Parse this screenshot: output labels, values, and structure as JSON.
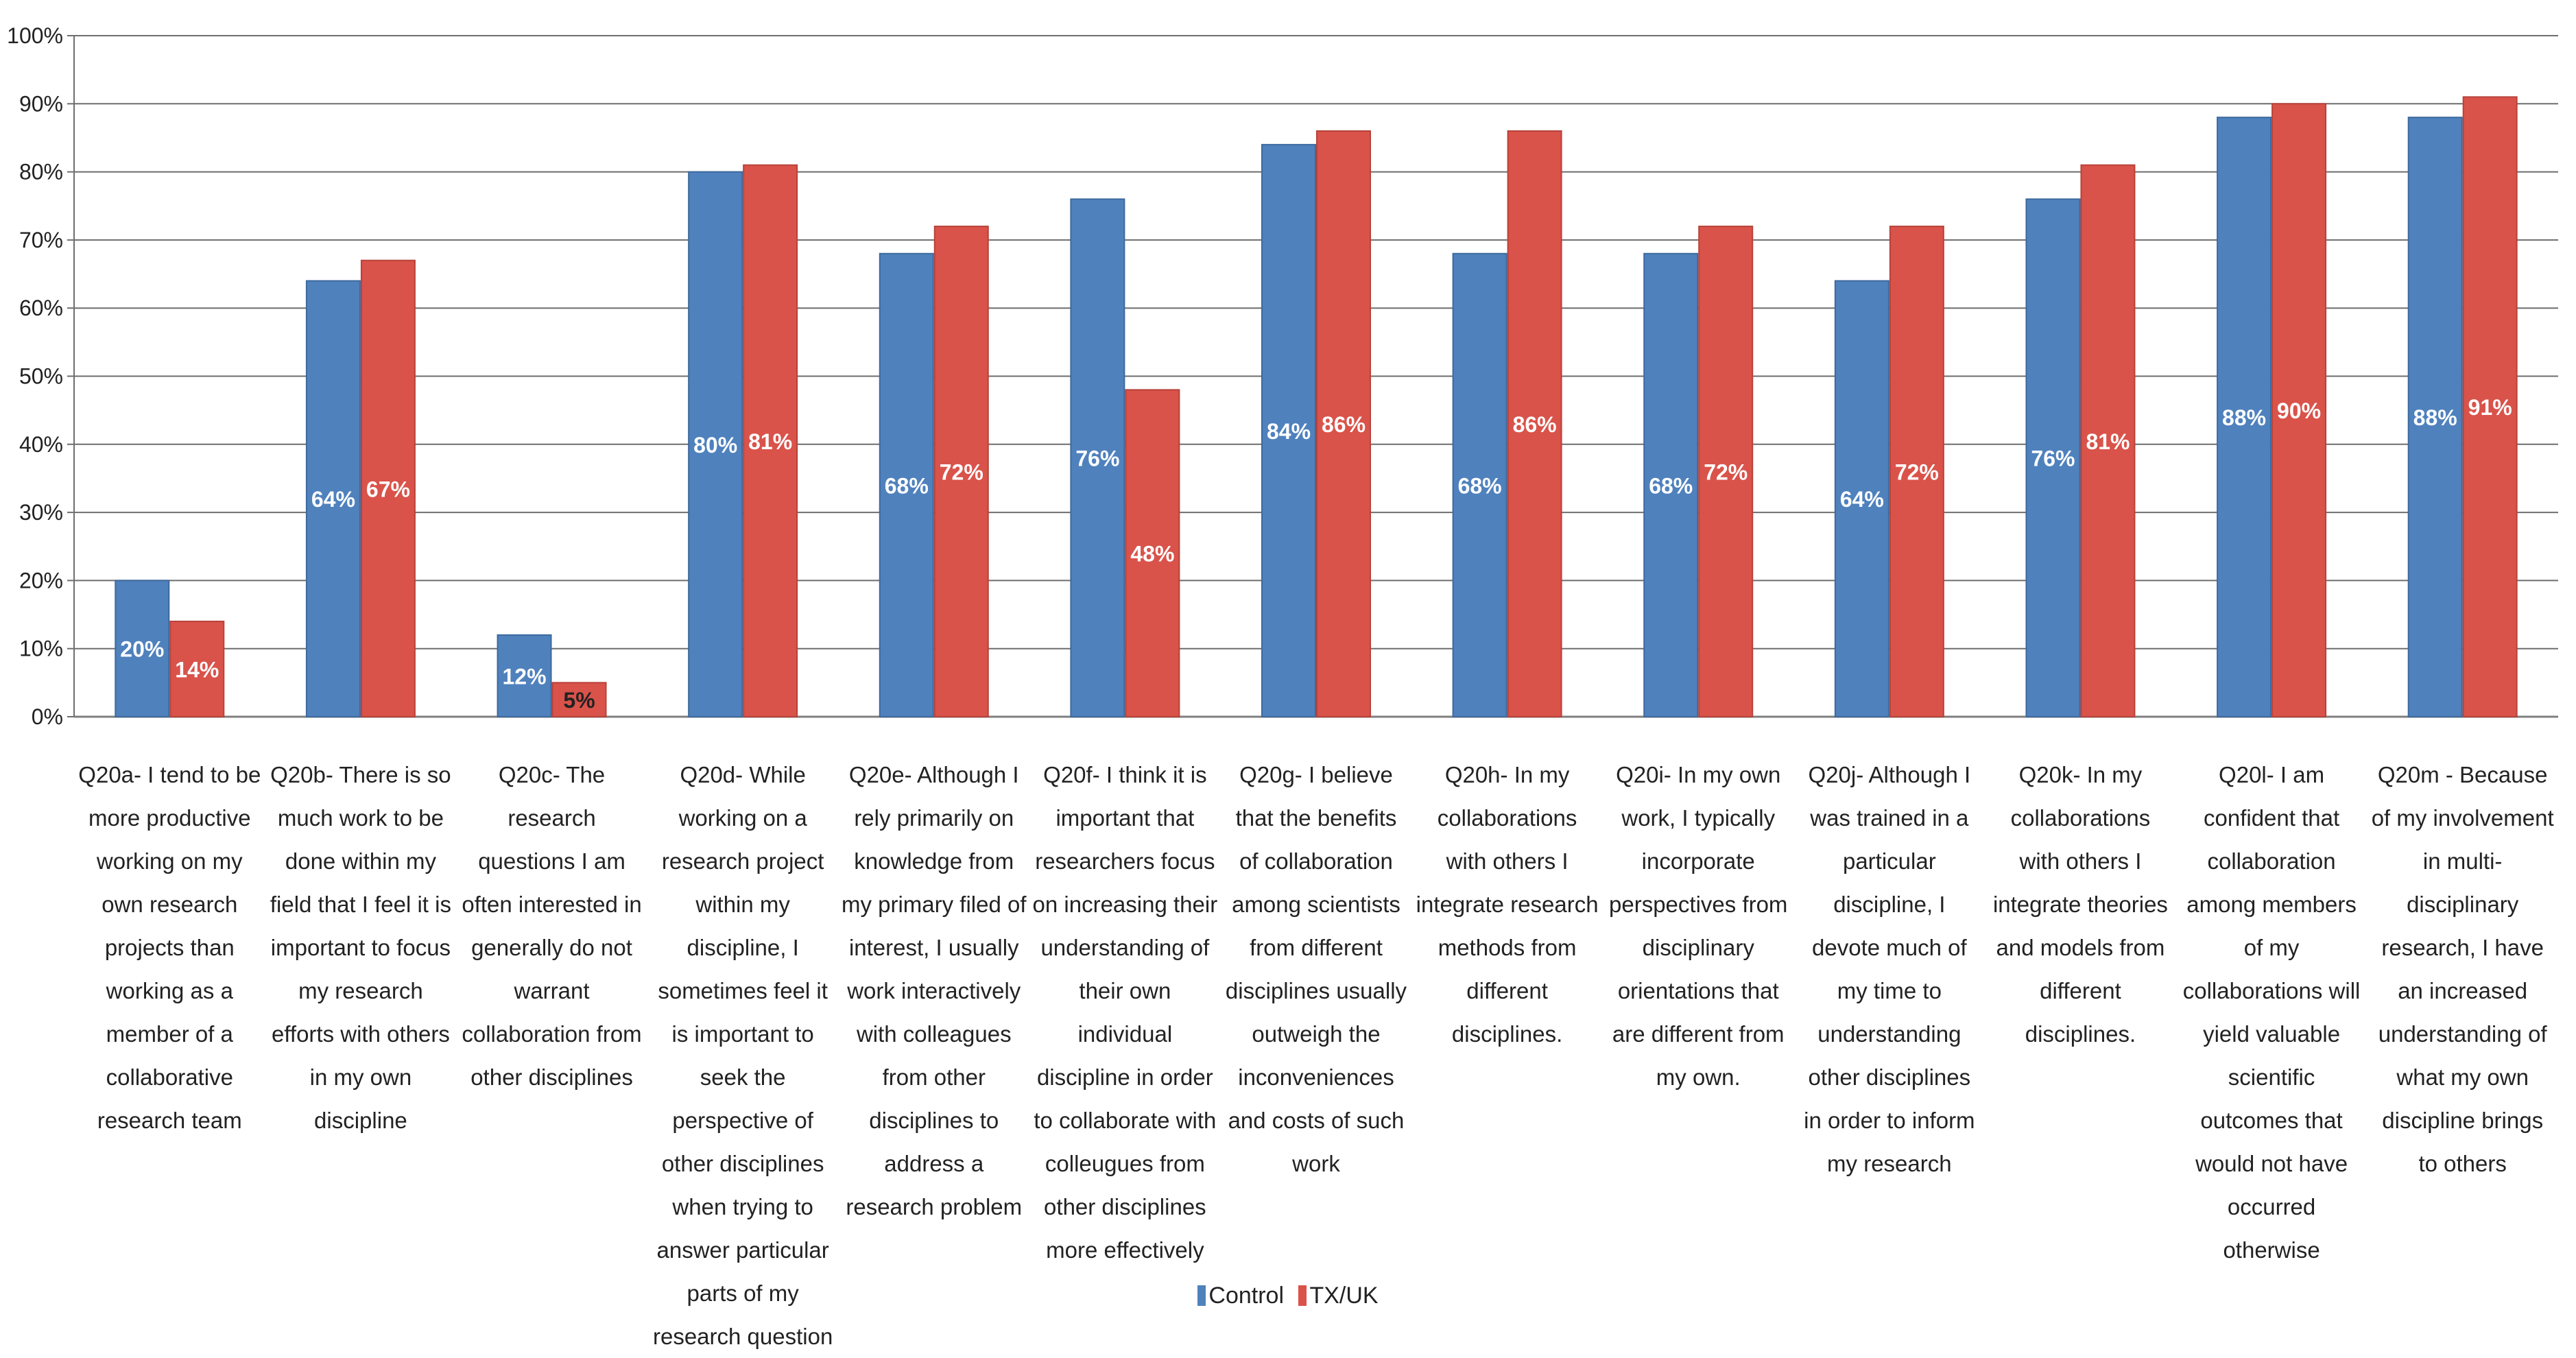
{
  "chart_data": {
    "type": "bar",
    "title": "",
    "xlabel": "",
    "ylabel": "",
    "ylim": [
      0,
      100
    ],
    "y_ticks": [
      "0%",
      "10%",
      "20%",
      "30%",
      "40%",
      "50%",
      "60%",
      "70%",
      "80%",
      "90%",
      "100%"
    ],
    "grid": true,
    "legend_position": "bottom",
    "categories": [
      "Q20a- I tend to be more productive working on my own research projects than working as a member of a collaborative research team",
      "Q20b- There is so much work to be done within my field that I feel it is important to focus my research efforts with others in my own discipline",
      "Q20c- The research questions I am often interested in generally do not warrant collaboration from other disciplines",
      "Q20d- While working on a research project within my discipline, I sometimes feel it is important to seek the perspective of other disciplines when trying to answer particular parts of my research question",
      "Q20e- Although I rely primarily on knowledge from my primary filed of interest, I usually work interactively with colleagues from other disciplines to address a research problem",
      "Q20f- I think it is important that researchers focus on increasing their understanding of their own individual discipline in order to collaborate with colleugues from other disciplines more effectively",
      "Q20g- I believe that the benefits of collaboration among scientists from different disciplines usually outweigh the inconveniences and costs of such work",
      "Q20h- In my collaborations with others I integrate research methods from different disciplines.",
      "Q20i- In my own work, I typically incorporate perspectives from disciplinary orientations that are different from my own.",
      "Q20j- Although I was trained in a particular discipline, I devote much of my time to understanding other disciplines in order to inform my research",
      "Q20k- In my collaborations with others I integrate theories and models from different disciplines.",
      "Q20l- I am confident that collaboration among members of my collaborations will yield valuable scientific outcomes that would not have occurred otherwise",
      "Q20m - Because of my involvement in multi-disciplinary research, I have an increased understanding of what my own discipline brings to others"
    ],
    "series": [
      {
        "name": "Control",
        "color": "#4f81bd",
        "values": [
          20,
          64,
          12,
          80,
          68,
          76,
          84,
          68,
          68,
          64,
          76,
          88,
          88
        ],
        "labels": [
          "20%",
          "64%",
          "12%",
          "80%",
          "68%",
          "76%",
          "84%",
          "68%",
          "68%",
          "64%",
          "76%",
          "88%",
          "88%"
        ]
      },
      {
        "name": "TX/UK",
        "color": "#d9534a",
        "values": [
          14,
          67,
          5,
          81,
          72,
          48,
          86,
          86,
          72,
          72,
          81,
          90,
          91
        ],
        "labels": [
          "14%",
          "67%",
          "5%",
          "81%",
          "72%",
          "48%",
          "86%",
          "86%",
          "72%",
          "72%",
          "81%",
          "90%",
          "91%"
        ]
      }
    ]
  }
}
